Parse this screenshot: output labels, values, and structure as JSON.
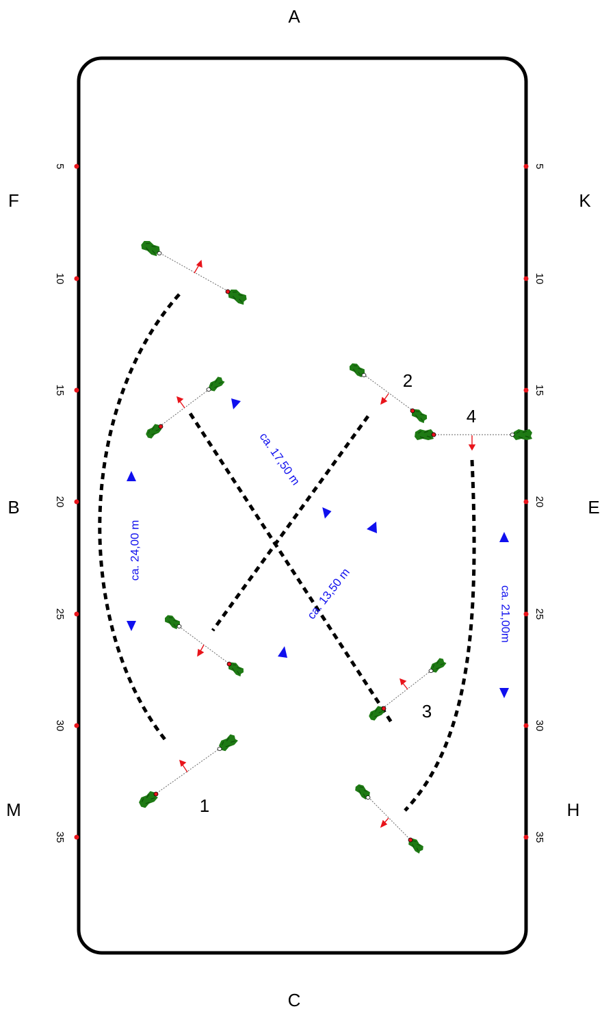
{
  "colors": {
    "arena": "#000000",
    "marker": "#e8141b",
    "wing": "#1e7a14",
    "pole": "#555555",
    "direction": "#e8141b",
    "distance": "#1010ee"
  },
  "arena_letters": {
    "top": "A",
    "left_1": "F",
    "left_2": "B",
    "left_3": "M",
    "right_1": "K",
    "right_2": "E",
    "right_3": "H",
    "bottom": "C"
  },
  "meter_marks": {
    "m5": "5",
    "m10": "10",
    "m15": "15",
    "m20": "20",
    "m25": "25",
    "m30": "30",
    "m35": "35"
  },
  "fences": {
    "f1": "1",
    "f2": "2",
    "f3": "3",
    "f4": "4"
  },
  "distances": {
    "d1": "ca. 24,00 m",
    "d2": "ca. 17,50 m",
    "d3": "ca. 13,50 m",
    "d4": "ca. 21,00m"
  },
  "icons": {
    "wing": "jump-wing-icon",
    "arrow": "jump-direction-arrow-icon",
    "triangle": "riding-direction-icon"
  }
}
